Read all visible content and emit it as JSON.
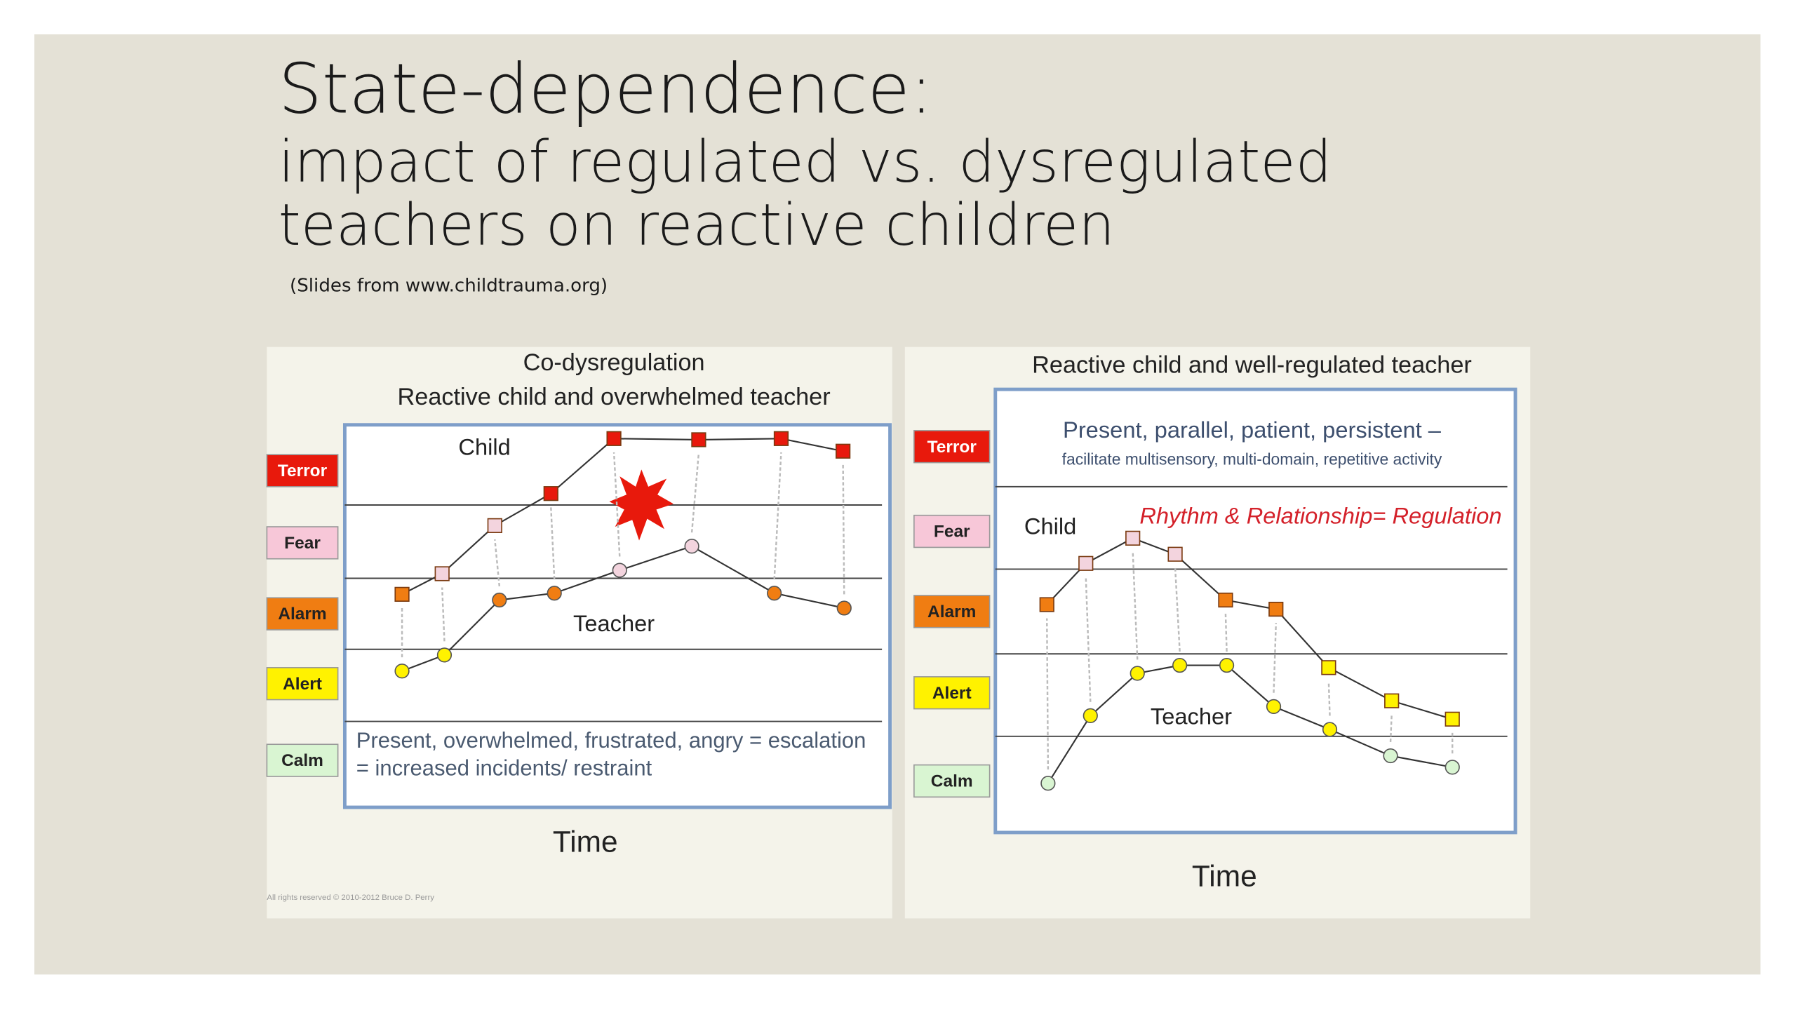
{
  "title": "State-dependence:",
  "subtitle": [
    "impact of regulated vs. dysregulated",
    "teachers on reactive children"
  ],
  "source": "(Slides from www.childtrauma.org)",
  "panels": [
    {
      "title": [
        "Co-dysregulation",
        "Reactive child and overwhelmed teacher"
      ],
      "states": [
        "Terror",
        "Fear",
        "Alarm",
        "Alert",
        "Calm"
      ],
      "child_label": "Child",
      "teacher_label": "Teacher",
      "note": [
        "Present, overwhelmed, frustrated, angry = escalation",
        "= increased incidents/ restraint"
      ],
      "axis_label": "Time",
      "copyright": "All rights reserved © 2010-2012 Bruce D. Perry"
    },
    {
      "title": [
        "Reactive child and well-regulated teacher"
      ],
      "states": [
        "Terror",
        "Fear",
        "Alarm",
        "Alert",
        "Calm"
      ],
      "note": [
        "Present, parallel, patient, persistent –",
        "facilitate multisensory, multi-domain, repetitive activity"
      ],
      "motto": "Rhythm & Relationship= Regulation",
      "child_label": "Child",
      "teacher_label": "Teacher",
      "axis_label": "Time"
    }
  ]
}
